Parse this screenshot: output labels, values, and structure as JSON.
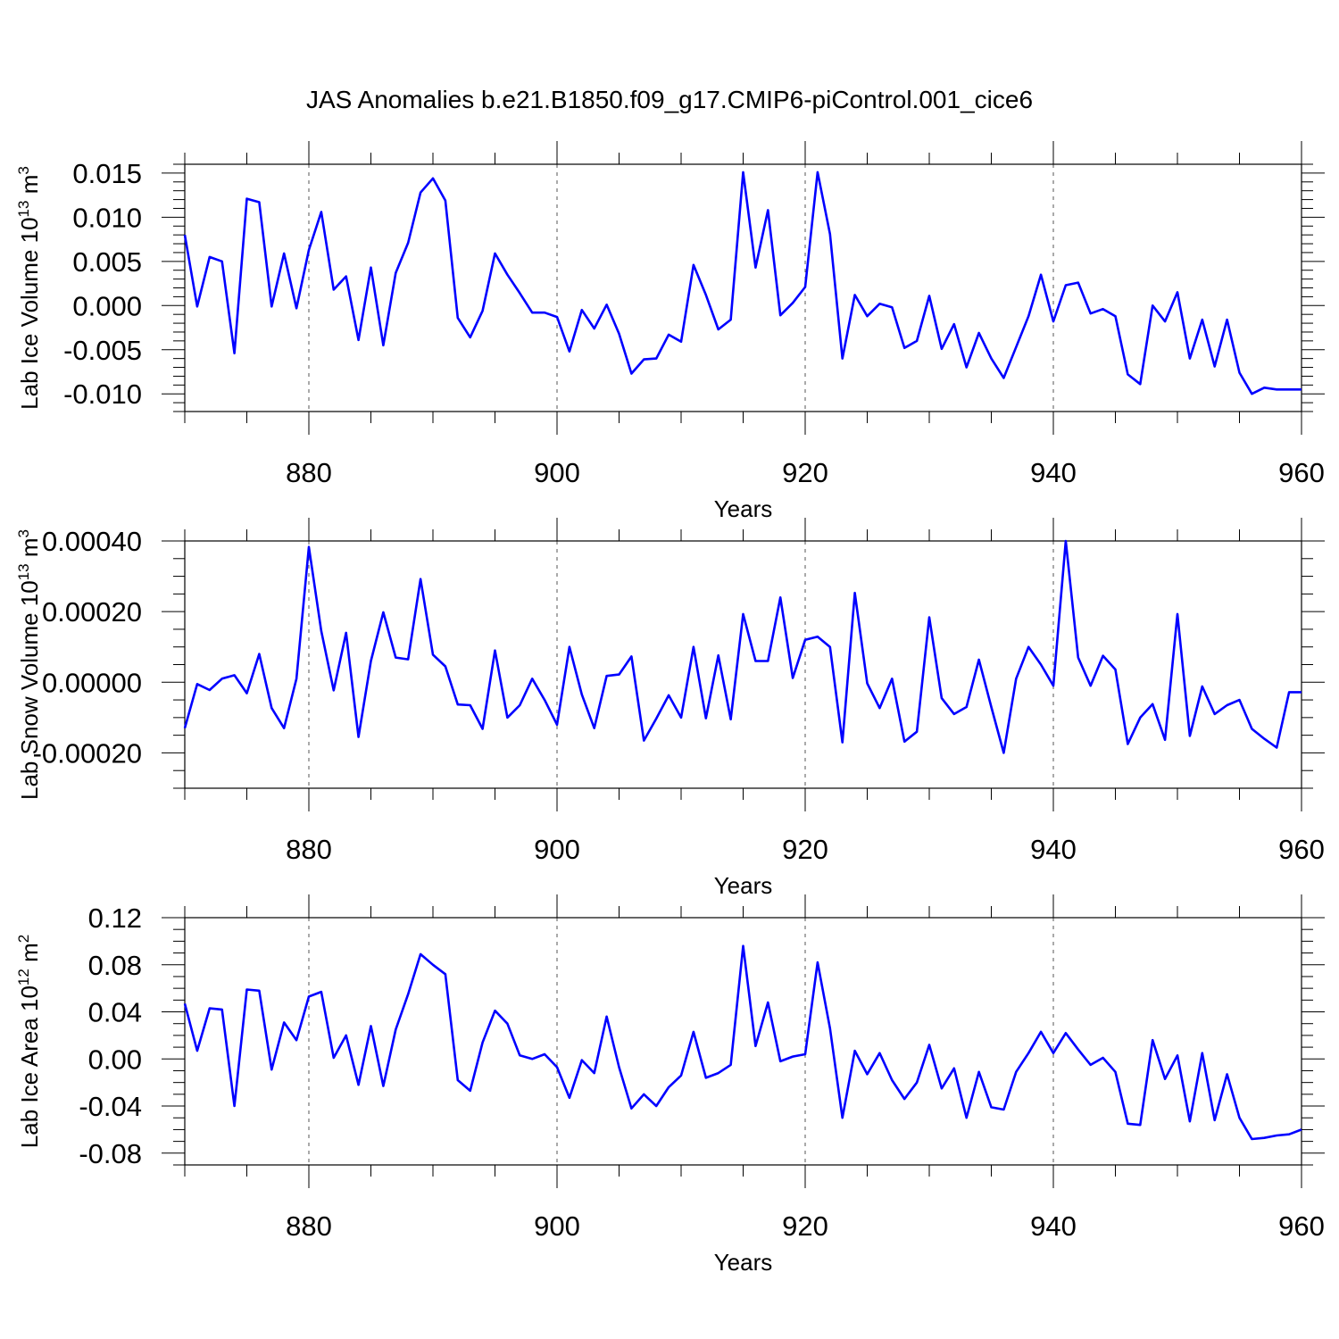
{
  "figure": {
    "title": "JAS Anomalies b.e21.B1850.f09_g17.CMIP6-piControl.001_cice6",
    "line_color": "#0000ff",
    "grid_color": "#555555"
  },
  "chart_data": [
    {
      "type": "line",
      "xlabel": "Years",
      "ylabel_main": "Lab Ice Volume 10",
      "ylabel_exp": "13",
      "ylabel_unit": "m",
      "ylabel_unit_exp": "3",
      "xlim": [
        870,
        960
      ],
      "ylim": [
        -0.012,
        0.016
      ],
      "yticks": [
        -0.01,
        -0.005,
        0.0,
        0.005,
        0.01,
        0.015
      ],
      "ytick_labels": [
        "-0.010",
        "-0.005",
        "0.000",
        "0.005",
        "0.010",
        "0.015"
      ],
      "yminor": 0.001,
      "xticks": [
        880,
        900,
        920,
        940,
        960
      ],
      "xtick_labels": [
        "880",
        "900",
        "920",
        "940",
        "960"
      ],
      "x": [
        870,
        871,
        872,
        873,
        874,
        875,
        876,
        877,
        878,
        879,
        880,
        881,
        882,
        883,
        884,
        885,
        886,
        887,
        888,
        889,
        890,
        891,
        892,
        893,
        894,
        895,
        896,
        897,
        898,
        899,
        900,
        901,
        902,
        903,
        904,
        905,
        906,
        907,
        908,
        909,
        910,
        911,
        912,
        913,
        914,
        915,
        916,
        917,
        918,
        919,
        920,
        921,
        922,
        923,
        924,
        925,
        926,
        927,
        928,
        929,
        930,
        931,
        932,
        933,
        934,
        935,
        936,
        937,
        938,
        939,
        940,
        941,
        942,
        943,
        944,
        945,
        946,
        947,
        948,
        949,
        950,
        951,
        952,
        953,
        954,
        955,
        956,
        957,
        958,
        959,
        960
      ],
      "series": [
        {
          "name": "Lab Ice Volume",
          "values": [
            0.008,
            -0.0001,
            0.0055,
            0.005,
            -0.0054,
            0.0121,
            0.0117,
            -0.0001,
            0.0059,
            -0.0003,
            0.0063,
            0.0106,
            0.0018,
            0.0033,
            -0.0039,
            0.0043,
            -0.0045,
            0.0037,
            0.0071,
            0.0128,
            0.0144,
            0.0119,
            -0.0014,
            -0.0036,
            -0.0006,
            0.0059,
            0.0035,
            0.0014,
            -0.0008,
            -0.0008,
            -0.0013,
            -0.0052,
            -0.0005,
            -0.0026,
            0.0001,
            -0.0032,
            -0.0077,
            -0.0061,
            -0.006,
            -0.0033,
            -0.0041,
            0.0046,
            0.0012,
            -0.0027,
            -0.0016,
            0.0151,
            0.0043,
            0.0108,
            -0.0011,
            0.0003,
            0.0021,
            0.0151,
            0.0081,
            -0.006,
            0.0012,
            -0.0012,
            0.0002,
            -0.0002,
            -0.0048,
            -0.004,
            0.0011,
            -0.0049,
            -0.0021,
            -0.007,
            -0.0031,
            -0.006,
            -0.0082,
            -0.0047,
            -0.0012,
            0.0035,
            -0.0018,
            0.0023,
            0.0026,
            -0.0009,
            -0.0004,
            -0.0012,
            -0.0078,
            -0.0089,
            0.0,
            -0.0018,
            0.0015,
            -0.006,
            -0.0016,
            -0.0069,
            -0.0016,
            -0.0076,
            -0.01,
            -0.0093,
            -0.0095,
            -0.0095,
            -0.0095
          ]
        }
      ]
    },
    {
      "type": "line",
      "xlabel": "Years",
      "ylabel_main": "Lab Snow Volume 10",
      "ylabel_exp": "13",
      "ylabel_unit": "m",
      "ylabel_unit_exp": "3",
      "xlim": [
        870,
        960
      ],
      "ylim": [
        -0.0003,
        0.0004
      ],
      "yticks": [
        -0.0002,
        0.0,
        0.0002,
        0.0004
      ],
      "ytick_labels": [
        "-0.00020",
        "0.00000",
        "0.00020",
        "0.00040"
      ],
      "yminor": 5e-05,
      "xticks": [
        880,
        900,
        920,
        940,
        960
      ],
      "xtick_labels": [
        "880",
        "900",
        "920",
        "940",
        "960"
      ],
      "x": [
        870,
        871,
        872,
        873,
        874,
        875,
        876,
        877,
        878,
        879,
        880,
        881,
        882,
        883,
        884,
        885,
        886,
        887,
        888,
        889,
        890,
        891,
        892,
        893,
        894,
        895,
        896,
        897,
        898,
        899,
        900,
        901,
        902,
        903,
        904,
        905,
        906,
        907,
        908,
        909,
        910,
        911,
        912,
        913,
        914,
        915,
        916,
        917,
        918,
        919,
        920,
        921,
        922,
        923,
        924,
        925,
        926,
        927,
        928,
        929,
        930,
        931,
        932,
        933,
        934,
        935,
        936,
        937,
        938,
        939,
        940,
        941,
        942,
        943,
        944,
        945,
        946,
        947,
        948,
        949,
        950,
        951,
        952,
        953,
        954,
        955,
        956,
        957,
        958,
        959,
        960
      ],
      "series": [
        {
          "name": "Lab Snow Volume",
          "values": [
            -0.00013,
            -5e-06,
            -2.2e-05,
            1e-05,
            2e-05,
            -3.1e-05,
            8e-05,
            -7.3e-05,
            -0.00013,
            1e-05,
            0.000383,
            0.000145,
            -2.3e-05,
            0.00014,
            -0.000155,
            6e-05,
            0.000198,
            7e-05,
            6.5e-05,
            0.000292,
            7.8e-05,
            4.5e-05,
            -6.3e-05,
            -6.5e-05,
            -0.000132,
            9e-05,
            -0.0001,
            -6.5e-05,
            1e-05,
            -5e-05,
            -0.00012,
            0.0001,
            -3.5e-05,
            -0.00013,
            1.8e-05,
            2.2e-05,
            7.3e-05,
            -0.000165,
            -0.000103,
            -3.7e-05,
            -0.0001,
            0.0001,
            -0.000102,
            7.6e-05,
            -0.000105,
            0.000193,
            6e-05,
            6e-05,
            0.00024,
            1.2e-05,
            0.00012,
            0.000129,
            0.0001,
            -0.00017,
            0.000253,
            -3e-06,
            -7.3e-05,
            1e-05,
            -0.000168,
            -0.00014,
            0.000184,
            -4.5e-05,
            -9e-05,
            -7e-05,
            6.4e-05,
            -7e-05,
            -0.0002,
            1e-05,
            0.0001,
            5e-05,
            -1e-05,
            0.0004,
            7e-05,
            -1e-05,
            7.5e-05,
            3.6e-05,
            -0.000175,
            -0.0001,
            -6.2e-05,
            -0.000163,
            0.000193,
            -0.000152,
            -1.2e-05,
            -9e-05,
            -6.5e-05,
            -5e-05,
            -0.000132,
            -0.00016,
            -0.000185,
            -2.8e-05,
            -2.8e-05
          ]
        }
      ]
    },
    {
      "type": "line",
      "xlabel": "Years",
      "ylabel_main": "Lab Ice Area 10",
      "ylabel_exp": "12",
      "ylabel_unit": "m",
      "ylabel_unit_exp": "2",
      "xlim": [
        870,
        960
      ],
      "ylim": [
        -0.09,
        0.12
      ],
      "yticks": [
        -0.08,
        -0.04,
        0.0,
        0.04,
        0.08,
        0.12
      ],
      "ytick_labels": [
        "-0.08",
        "-0.04",
        "0.00",
        "0.04",
        "0.08",
        "0.12"
      ],
      "yminor": 0.01,
      "xticks": [
        880,
        900,
        920,
        940,
        960
      ],
      "xtick_labels": [
        "880",
        "900",
        "920",
        "940",
        "960"
      ],
      "x": [
        870,
        871,
        872,
        873,
        874,
        875,
        876,
        877,
        878,
        879,
        880,
        881,
        882,
        883,
        884,
        885,
        886,
        887,
        888,
        889,
        890,
        891,
        892,
        893,
        894,
        895,
        896,
        897,
        898,
        899,
        900,
        901,
        902,
        903,
        904,
        905,
        906,
        907,
        908,
        909,
        910,
        911,
        912,
        913,
        914,
        915,
        916,
        917,
        918,
        919,
        920,
        921,
        922,
        923,
        924,
        925,
        926,
        927,
        928,
        929,
        930,
        931,
        932,
        933,
        934,
        935,
        936,
        937,
        938,
        939,
        940,
        941,
        942,
        943,
        944,
        945,
        946,
        947,
        948,
        949,
        950,
        951,
        952,
        953,
        954,
        955,
        956,
        957,
        958,
        959,
        960
      ],
      "series": [
        {
          "name": "Lab Ice Area",
          "values": [
            0.047,
            0.007,
            0.043,
            0.042,
            -0.04,
            0.059,
            0.058,
            -0.009,
            0.031,
            0.016,
            0.053,
            0.057,
            0.001,
            0.02,
            -0.022,
            0.028,
            -0.023,
            0.025,
            0.055,
            0.089,
            0.08,
            0.072,
            -0.018,
            -0.027,
            0.014,
            0.041,
            0.03,
            0.003,
            0.0,
            0.004,
            -0.007,
            -0.033,
            -0.001,
            -0.012,
            0.036,
            -0.007,
            -0.042,
            -0.03,
            -0.04,
            -0.024,
            -0.014,
            0.023,
            -0.016,
            -0.012,
            -0.005,
            0.096,
            0.011,
            0.048,
            -0.002,
            0.002,
            0.004,
            0.082,
            0.026,
            -0.05,
            0.007,
            -0.013,
            0.005,
            -0.018,
            -0.034,
            -0.02,
            0.012,
            -0.025,
            -0.008,
            -0.05,
            -0.011,
            -0.041,
            -0.043,
            -0.011,
            0.005,
            0.023,
            0.005,
            0.022,
            0.008,
            -0.005,
            0.001,
            -0.011,
            -0.055,
            -0.056,
            0.016,
            -0.017,
            0.003,
            -0.053,
            0.005,
            -0.052,
            -0.013,
            -0.05,
            -0.068,
            -0.067,
            -0.065,
            -0.064,
            -0.06
          ]
        }
      ]
    }
  ]
}
